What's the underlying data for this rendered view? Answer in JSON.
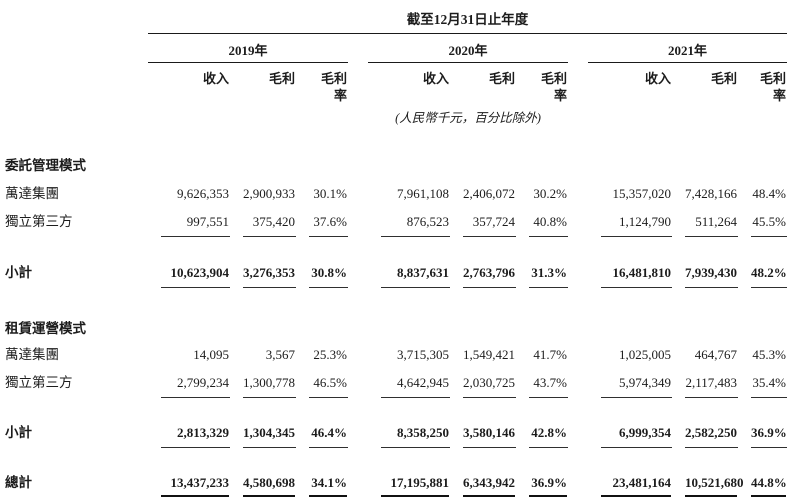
{
  "document": {
    "period_title": "截至12月31日止年度",
    "unit_note": "(人民幣千元，百分比除外)",
    "year_groups": [
      "2019年",
      "2020年",
      "2021年"
    ],
    "sub_headers": [
      "收入",
      "毛利",
      "毛利率"
    ],
    "sections": [
      {
        "title": "委託管理模式",
        "rows": [
          {
            "label": "萬達集團",
            "values": [
              "9,626,353",
              "2,900,933",
              "30.1%",
              "7,961,108",
              "2,406,072",
              "30.2%",
              "15,357,020",
              "7,428,166",
              "48.4%"
            ]
          },
          {
            "label": "獨立第三方",
            "values": [
              "997,551",
              "375,420",
              "37.6%",
              "876,523",
              "357,724",
              "40.8%",
              "1,124,790",
              "511,264",
              "45.5%"
            ]
          }
        ],
        "subtotal": {
          "label": "小計",
          "values": [
            "10,623,904",
            "3,276,353",
            "30.8%",
            "8,837,631",
            "2,763,796",
            "31.3%",
            "16,481,810",
            "7,939,430",
            "48.2%"
          ]
        }
      },
      {
        "title": "租賃運營模式",
        "rows": [
          {
            "label": "萬達集團",
            "values": [
              "14,095",
              "3,567",
              "25.3%",
              "3,715,305",
              "1,549,421",
              "41.7%",
              "1,025,005",
              "464,767",
              "45.3%"
            ]
          },
          {
            "label": "獨立第三方",
            "values": [
              "2,799,234",
              "1,300,778",
              "46.5%",
              "4,642,945",
              "2,030,725",
              "43.7%",
              "5,974,349",
              "2,117,483",
              "35.4%"
            ]
          }
        ],
        "subtotal": {
          "label": "小計",
          "values": [
            "2,813,329",
            "1,304,345",
            "46.4%",
            "8,358,250",
            "3,580,146",
            "42.8%",
            "6,999,354",
            "2,582,250",
            "36.9%"
          ]
        }
      }
    ],
    "total": {
      "label": "總計",
      "values": [
        "13,437,233",
        "4,580,698",
        "34.1%",
        "17,195,881",
        "6,343,942",
        "36.9%",
        "23,481,164",
        "10,521,680",
        "44.8%"
      ]
    },
    "colors": {
      "text": "#1c1c1c",
      "rule": "#1a1a1a"
    }
  }
}
